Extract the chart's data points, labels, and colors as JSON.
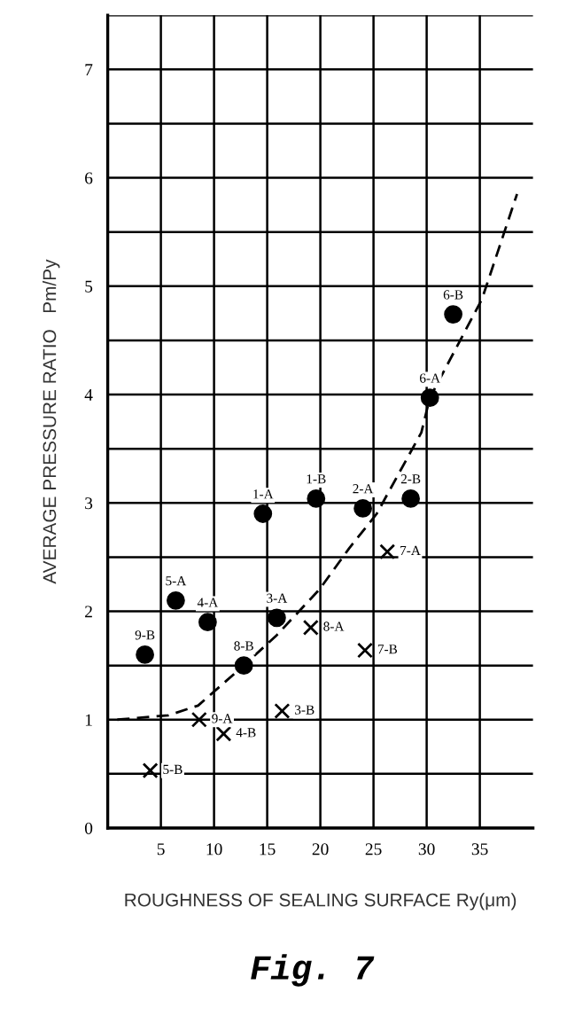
{
  "chart_data": {
    "type": "scatter",
    "xlabel": "ROUGHNESS OF SEALING SURFACE Ry(μm)",
    "ylabel": "AVERAGE PRESSURE RATIO   Pm/Py",
    "xlim": [
      0,
      40
    ],
    "xticks": [
      5,
      10,
      15,
      20,
      25,
      30,
      35
    ],
    "ylim": [
      0,
      7.5
    ],
    "yticks": [
      0,
      {
        "value": 0.5,
        "label": null
      },
      1,
      {
        "value": 1.5,
        "label": null
      },
      2,
      {
        "value": 2.5,
        "label": null
      },
      3,
      {
        "value": 3.5,
        "label": null
      },
      4,
      {
        "value": 4.5,
        "label": null
      },
      5,
      {
        "value": 5.5,
        "label": null
      },
      6,
      {
        "value": 6.5,
        "label": null
      },
      7,
      {
        "value": 7.5,
        "label": null
      }
    ],
    "grid": true,
    "series": [
      {
        "type": "scatter",
        "marker": "circle",
        "color": "#000000",
        "x": [
          14.6,
          19.6,
          24.0,
          28.5,
          15.9,
          9.4,
          6.4,
          3.5,
          12.8,
          30.3,
          32.5
        ],
        "values": [
          2.9,
          3.04,
          2.95,
          3.04,
          1.94,
          1.9,
          2.1,
          1.6,
          1.5,
          3.97,
          4.74
        ]
      },
      {
        "type": "scatter",
        "marker": "cross",
        "color": "#000000",
        "x": [
          26.3,
          19.1,
          24.2,
          16.4,
          8.6,
          10.9,
          4.0
        ],
        "values": [
          2.55,
          1.85,
          1.64,
          1.08,
          1.0,
          0.87,
          0.53
        ]
      },
      {
        "type": "line",
        "line_style": "dashed",
        "marker": "none",
        "color": "#000000",
        "x": [
          0.9,
          5.7,
          8.5,
          12.8,
          15.9,
          19.9,
          22.7,
          25.3,
          29.5,
          30.3,
          35.2,
          38.5
        ],
        "values": [
          1.0,
          1.04,
          1.13,
          1.5,
          1.78,
          2.2,
          2.58,
          2.9,
          3.65,
          3.97,
          4.88,
          5.85
        ]
      }
    ],
    "annotations": [
      {
        "text": "1-A",
        "x": 14.6,
        "y": 2.9
      },
      {
        "text": "1-B",
        "x": 19.6,
        "y": 3.04
      },
      {
        "text": "2-A",
        "x": 24.0,
        "y": 2.95
      },
      {
        "text": "2-B",
        "x": 28.5,
        "y": 3.04
      },
      {
        "text": "3-A",
        "x": 15.9,
        "y": 1.94
      },
      {
        "text": "4-A",
        "x": 9.4,
        "y": 1.9
      },
      {
        "text": "5-A",
        "x": 6.4,
        "y": 2.1
      },
      {
        "text": "9-B",
        "x": 3.5,
        "y": 1.6
      },
      {
        "text": "8-B",
        "x": 12.8,
        "y": 1.5
      },
      {
        "text": "6-A",
        "x": 30.3,
        "y": 3.97
      },
      {
        "text": "6-B",
        "x": 32.5,
        "y": 4.74
      },
      {
        "text": "7-A",
        "x": 26.3,
        "y": 2.55
      },
      {
        "text": "8-A",
        "x": 19.1,
        "y": 1.85
      },
      {
        "text": "7-B",
        "x": 24.2,
        "y": 1.64
      },
      {
        "text": "3-B",
        "x": 16.4,
        "y": 1.08
      },
      {
        "text": "9-A",
        "x": 8.6,
        "y": 1.0
      },
      {
        "text": "4-B",
        "x": 10.9,
        "y": 0.87
      },
      {
        "text": "5-B",
        "x": 4.0,
        "y": 0.53
      },
      "Fig. 7"
    ]
  }
}
